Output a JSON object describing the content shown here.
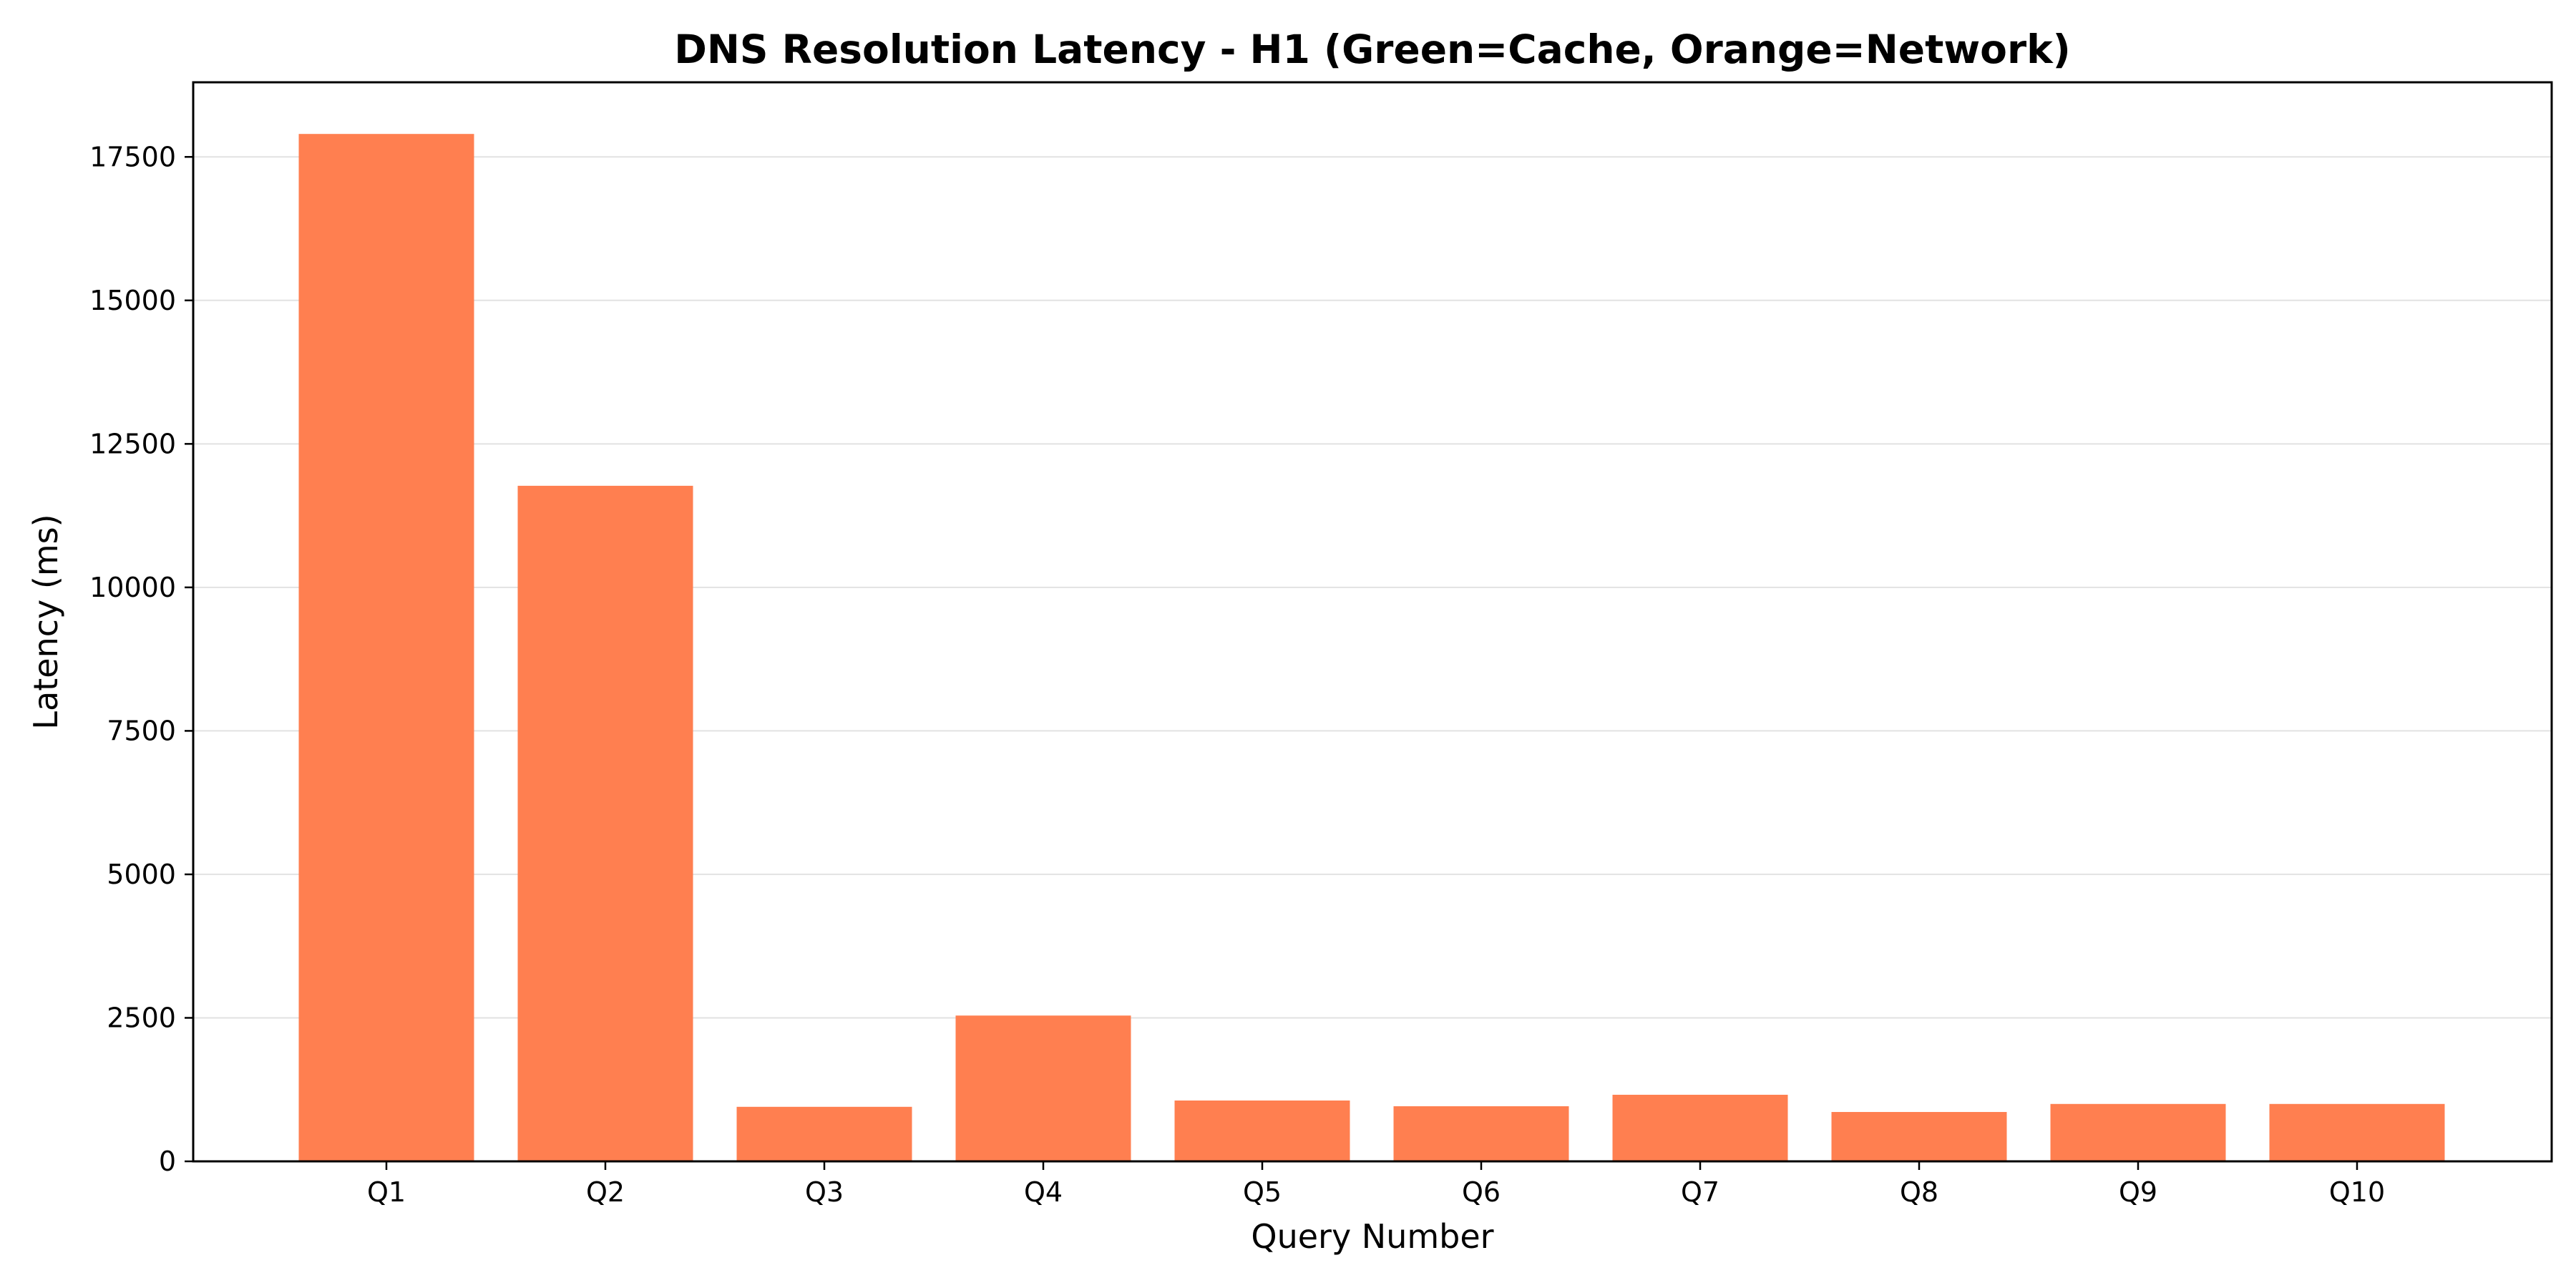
{
  "chart_data": {
    "type": "bar",
    "title": "DNS Resolution Latency - H1 (Green=Cache, Orange=Network)",
    "xlabel": "Query Number",
    "ylabel": "Latency (ms)",
    "categories": [
      "Q1",
      "Q2",
      "Q3",
      "Q4",
      "Q5",
      "Q6",
      "Q7",
      "Q8",
      "Q9",
      "Q10"
    ],
    "values": [
      17900,
      11770,
      950,
      2540,
      1060,
      960,
      1160,
      860,
      1000,
      1000
    ],
    "ylim": [
      0,
      18800
    ],
    "yticks": [
      0,
      2500,
      5000,
      7500,
      10000,
      12500,
      15000,
      17500
    ],
    "ytick_labels": [
      "0",
      "2500",
      "5000",
      "7500",
      "10000",
      "12500",
      "15000",
      "17500"
    ],
    "grid": "horizontal",
    "bar_color": "#ff7f50",
    "grid_color": "#e2e2e2"
  }
}
